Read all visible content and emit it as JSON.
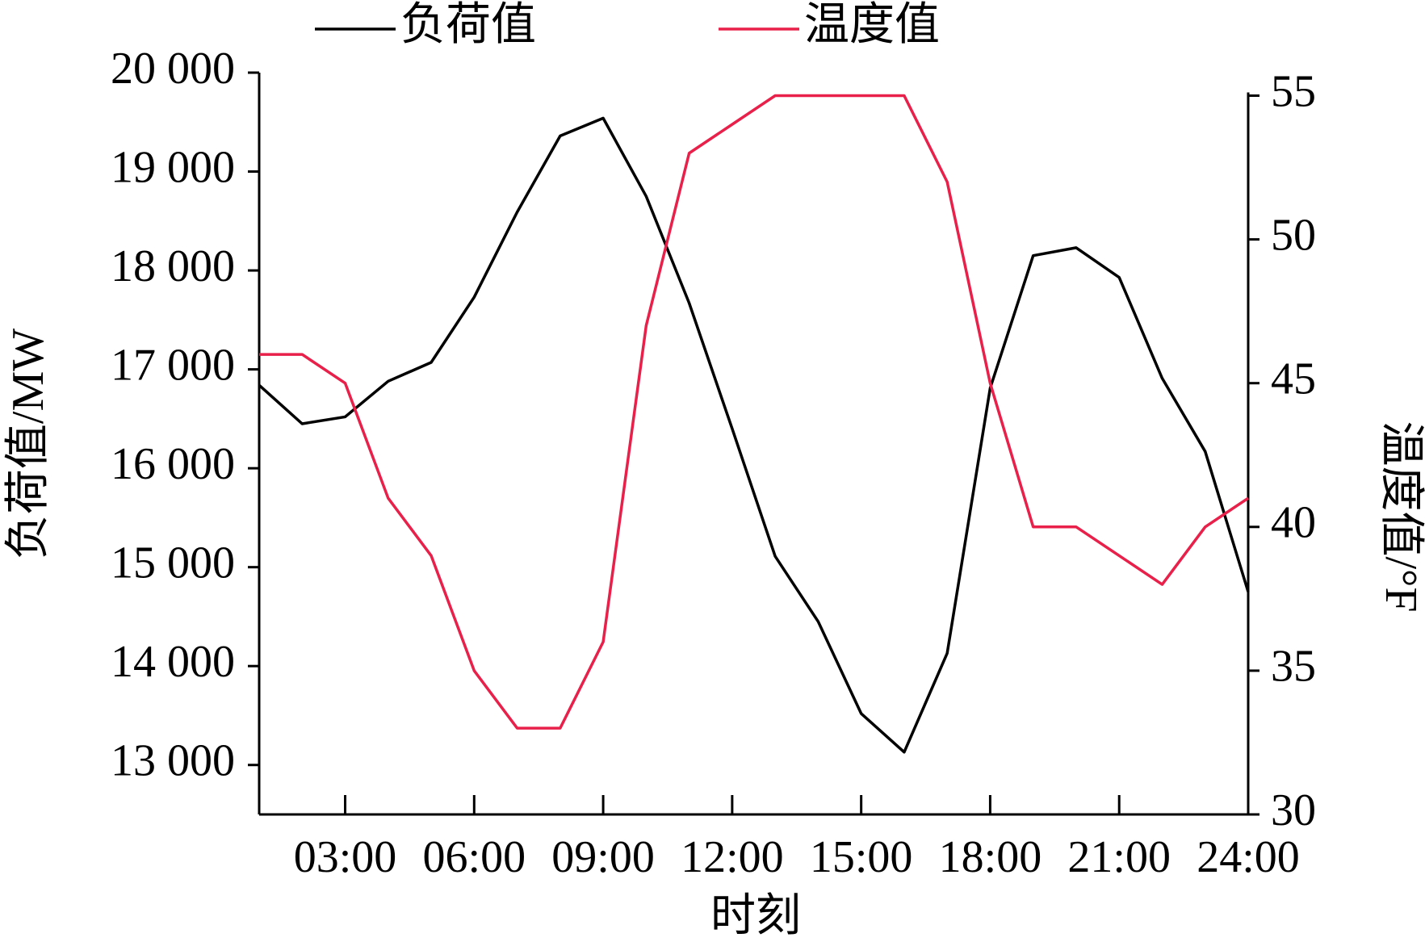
{
  "chart_data": {
    "type": "line",
    "x": [
      1,
      2,
      3,
      4,
      5,
      6,
      7,
      8,
      9,
      10,
      11,
      12,
      13,
      14,
      15,
      16,
      17,
      18,
      19,
      20,
      21,
      22,
      23,
      24
    ],
    "series": [
      {
        "name": "负荷值",
        "color": "#000000",
        "values": [
          16840,
          16450,
          16520,
          16880,
          17070,
          17730,
          18590,
          19360,
          19540,
          18750,
          17670,
          16400,
          15110,
          14450,
          13520,
          13130,
          14130,
          16810,
          18150,
          18230,
          17930,
          16910,
          16170,
          14750
        ]
      },
      {
        "name": "温度值",
        "color": "#e8204a",
        "axis": "y2",
        "values": [
          46,
          46,
          45,
          41,
          39,
          35,
          33,
          33,
          36,
          47,
          53,
          54,
          55,
          55,
          55,
          55,
          52,
          45,
          40,
          40,
          39,
          38,
          40,
          41
        ]
      }
    ],
    "xlabel": "时刻",
    "ylabel": "负荷值/MW",
    "y2label": "温度值/°F",
    "xlim": [
      1,
      24
    ],
    "xticks": [
      {
        "value": 3,
        "label": "03:00"
      },
      {
        "value": 6,
        "label": "06:00"
      },
      {
        "value": 9,
        "label": "09:00"
      },
      {
        "value": 12,
        "label": "12:00"
      },
      {
        "value": 15,
        "label": "15:00"
      },
      {
        "value": 18,
        "label": "18:00"
      },
      {
        "value": 21,
        "label": "21:00"
      },
      {
        "value": 24,
        "label": "24:00"
      }
    ],
    "ylim": [
      12500,
      20000
    ],
    "yticks": [
      {
        "value": 13000,
        "label": "13 000"
      },
      {
        "value": 14000,
        "label": "14 000"
      },
      {
        "value": 15000,
        "label": "15 000"
      },
      {
        "value": 16000,
        "label": "16 000"
      },
      {
        "value": 17000,
        "label": "17 000"
      },
      {
        "value": 18000,
        "label": "18 000"
      },
      {
        "value": 19000,
        "label": "19 000"
      },
      {
        "value": 20000,
        "label": "20 000"
      }
    ],
    "y2lim": [
      30,
      55.8
    ],
    "y2ticks": [
      30,
      35,
      40,
      45,
      50,
      55
    ],
    "legend": "top"
  }
}
